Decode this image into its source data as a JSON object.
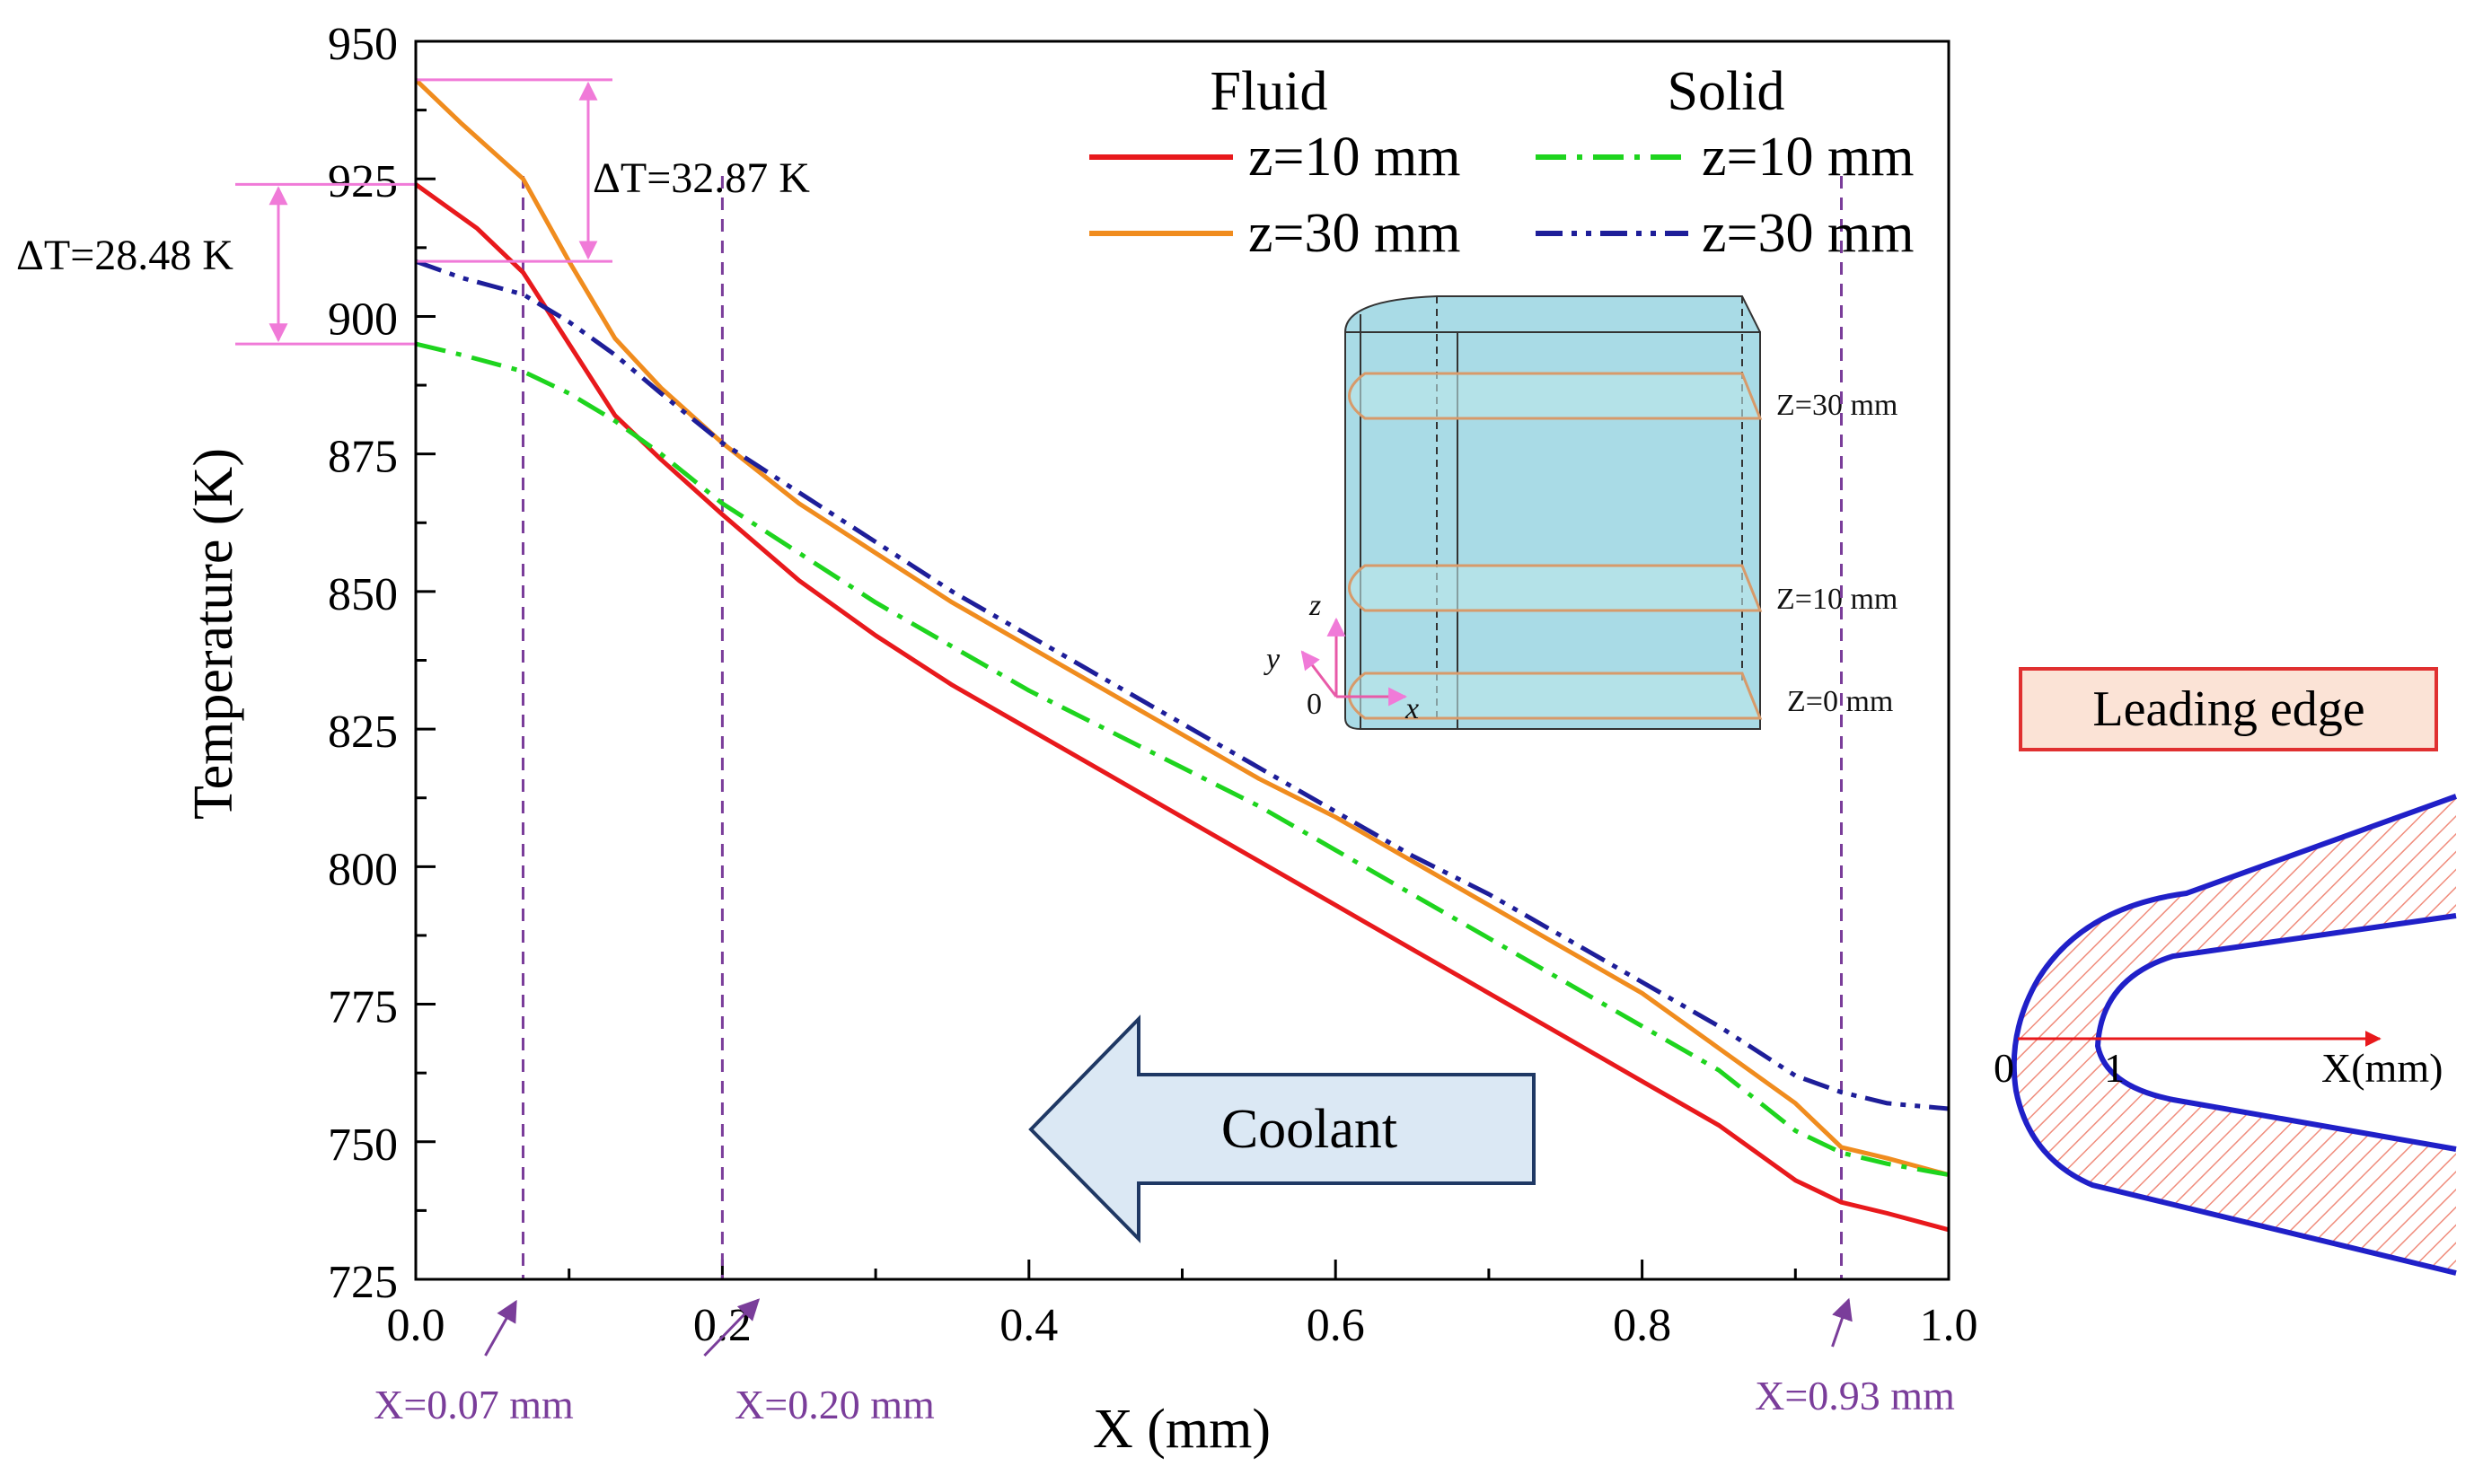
{
  "chart_data": {
    "type": "line",
    "xlabel": "X (mm)",
    "ylabel": "Temperature (K)",
    "xlim": [
      0.0,
      1.0
    ],
    "ylim": [
      725,
      950
    ],
    "x_ticks": [
      "0.0",
      "0.2",
      "0.4",
      "0.6",
      "0.8",
      "1.0"
    ],
    "y_ticks": [
      "725",
      "750",
      "775",
      "800",
      "825",
      "850",
      "875",
      "900",
      "925",
      "950"
    ],
    "legend_headers": {
      "fluid": "Fluid",
      "solid": "Solid"
    },
    "series": [
      {
        "name": "z=10 mm",
        "group": "Fluid",
        "color": "#e8191c",
        "dash": "solid",
        "x": [
          0.0,
          0.02,
          0.04,
          0.07,
          0.1,
          0.13,
          0.16,
          0.2,
          0.25,
          0.3,
          0.35,
          0.4,
          0.45,
          0.5,
          0.55,
          0.6,
          0.65,
          0.7,
          0.75,
          0.8,
          0.85,
          0.9,
          0.93,
          0.96,
          1.0
        ],
        "y": [
          924,
          920,
          916,
          908,
          895,
          882,
          874,
          864,
          852,
          842,
          833,
          825,
          817,
          809,
          801,
          793,
          785,
          777,
          769,
          761,
          753,
          743,
          739,
          737,
          734
        ]
      },
      {
        "name": "z=30 mm",
        "group": "Fluid",
        "color": "#f08c1e",
        "dash": "solid",
        "x": [
          0.0,
          0.03,
          0.07,
          0.1,
          0.13,
          0.16,
          0.2,
          0.25,
          0.3,
          0.35,
          0.4,
          0.45,
          0.5,
          0.55,
          0.6,
          0.65,
          0.7,
          0.75,
          0.8,
          0.85,
          0.9,
          0.93,
          0.96,
          1.0
        ],
        "y": [
          943,
          935,
          925,
          910,
          896,
          887,
          877,
          866,
          857,
          848,
          840,
          832,
          824,
          816,
          809,
          801,
          793,
          785,
          777,
          767,
          757,
          749,
          747,
          744
        ]
      },
      {
        "name": "z=10 mm",
        "group": "Solid",
        "color": "#1ed41e",
        "dash": "dashdot",
        "x": [
          0.0,
          0.03,
          0.07,
          0.1,
          0.13,
          0.16,
          0.2,
          0.25,
          0.3,
          0.35,
          0.4,
          0.45,
          0.5,
          0.55,
          0.6,
          0.65,
          0.7,
          0.75,
          0.8,
          0.85,
          0.9,
          0.93,
          0.96,
          1.0
        ],
        "y": [
          895,
          893,
          890,
          886,
          881,
          875,
          866,
          857,
          848,
          840,
          832,
          825,
          818,
          811,
          803,
          795,
          787,
          779,
          771,
          763,
          752,
          748,
          746,
          744
        ]
      },
      {
        "name": "z=30 mm",
        "group": "Solid",
        "color": "#1e1e99",
        "dash": "dashdotdot",
        "x": [
          0.0,
          0.03,
          0.07,
          0.1,
          0.13,
          0.16,
          0.2,
          0.25,
          0.3,
          0.35,
          0.4,
          0.45,
          0.5,
          0.55,
          0.6,
          0.65,
          0.7,
          0.75,
          0.8,
          0.85,
          0.9,
          0.93,
          0.96,
          1.0
        ],
        "y": [
          910,
          907,
          904,
          899,
          893,
          886,
          877,
          868,
          859,
          850,
          842,
          834,
          826,
          818,
          810,
          802,
          795,
          787,
          779,
          771,
          762,
          759,
          757,
          756
        ]
      }
    ],
    "reference_lines": [
      {
        "x": 0.07,
        "label": "X=0.07 mm"
      },
      {
        "x": 0.2,
        "label": "X=0.20 mm"
      },
      {
        "x": 0.93,
        "label": "X=0.93 mm"
      }
    ],
    "annotations": [
      {
        "text": "ΔT=32.87 K",
        "x": 0.0,
        "y_high": 943,
        "y_low": 910
      },
      {
        "text": "ΔT=28.48 K",
        "x": 0.0,
        "y_high": 924,
        "y_low": 895
      }
    ],
    "flow_arrow": {
      "label": "Coolant",
      "direction": "left"
    },
    "inset_geometry": {
      "planes": [
        "Z=30 mm",
        "Z=10 mm",
        "Z=0 mm"
      ],
      "axes": {
        "x": "x",
        "y": "y",
        "z": "z",
        "origin": "0"
      }
    },
    "leading_edge_panel": {
      "title": "Leading edge",
      "axis_label": "X(mm)",
      "tick_labels": [
        "0",
        "1"
      ]
    }
  }
}
